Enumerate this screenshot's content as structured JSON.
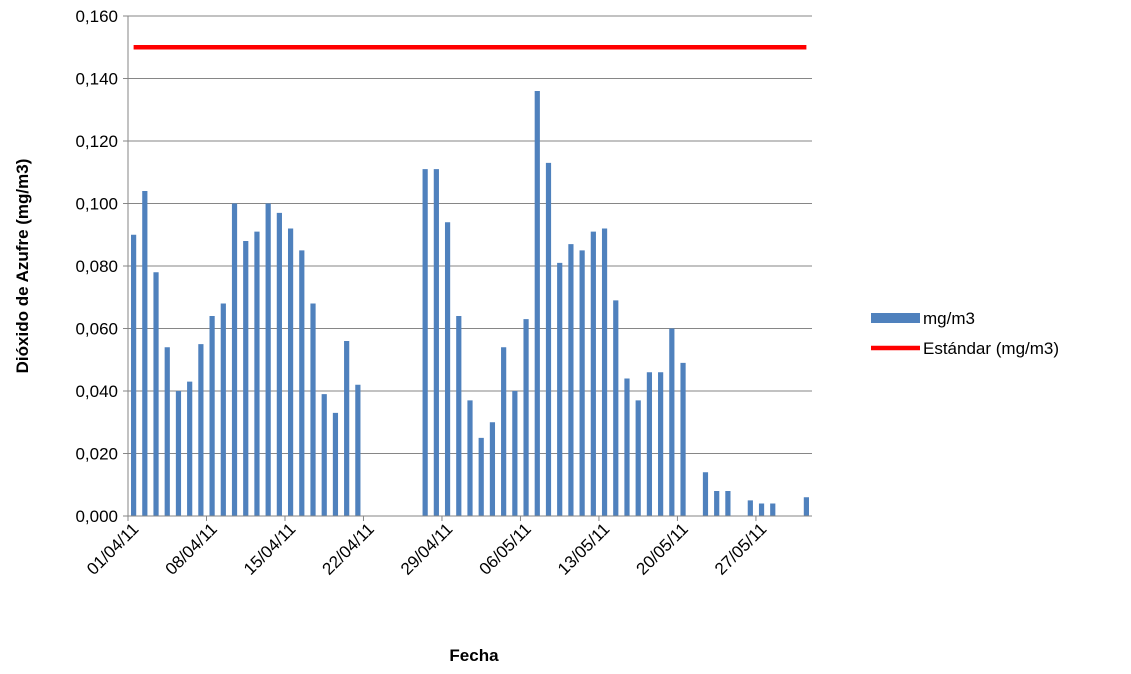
{
  "chart_data": {
    "type": "bar",
    "xlabel": "Fecha",
    "ylabel": "Dióxido de Azufre (mg/m3)",
    "categories": [
      "01/04/11",
      null,
      null,
      null,
      null,
      null,
      null,
      "08/04/11",
      null,
      null,
      null,
      null,
      null,
      null,
      "15/04/11",
      null,
      null,
      null,
      null,
      null,
      null,
      "22/04/11",
      null,
      null,
      null,
      null,
      null,
      null,
      "29/04/11",
      null,
      null,
      null,
      null,
      null,
      null,
      "06/05/11",
      null,
      null,
      null,
      null,
      null,
      null,
      "13/05/11",
      null,
      null,
      null,
      null,
      null,
      null,
      "20/05/11",
      null,
      null,
      null,
      null,
      null,
      null,
      "27/05/11",
      null,
      null,
      null,
      null
    ],
    "series": [
      {
        "name": "mg/m3",
        "type": "bar",
        "color": "#4f81bd",
        "values": [
          0.09,
          0.104,
          0.078,
          0.054,
          0.04,
          0.043,
          0.055,
          0.064,
          0.068,
          0.1,
          0.088,
          0.091,
          0.1,
          0.097,
          0.092,
          0.085,
          0.068,
          0.039,
          0.033,
          0.056,
          0.042,
          null,
          null,
          null,
          null,
          null,
          0.111,
          0.111,
          0.094,
          0.064,
          0.037,
          0.025,
          0.03,
          0.054,
          0.04,
          0.063,
          0.136,
          0.113,
          0.081,
          0.087,
          0.085,
          0.091,
          0.092,
          0.069,
          0.044,
          0.037,
          0.046,
          0.046,
          0.06,
          0.049,
          null,
          0.014,
          0.008,
          0.008,
          null,
          0.005,
          0.004,
          0.004,
          null,
          null,
          0.006
        ]
      },
      {
        "name": "Estándar (mg/m3)",
        "type": "line",
        "color": "#ff0000",
        "values": [
          0.15,
          0.15,
          0.15,
          0.15,
          0.15,
          0.15,
          0.15,
          0.15,
          0.15,
          0.15,
          0.15,
          0.15,
          0.15,
          0.15,
          0.15,
          0.15,
          0.15,
          0.15,
          0.15,
          0.15,
          0.15,
          0.15,
          0.15,
          0.15,
          0.15,
          0.15,
          0.15,
          0.15,
          0.15,
          0.15,
          0.15,
          0.15,
          0.15,
          0.15,
          0.15,
          0.15,
          0.15,
          0.15,
          0.15,
          0.15,
          0.15,
          0.15,
          0.15,
          0.15,
          0.15,
          0.15,
          0.15,
          0.15,
          0.15,
          0.15,
          0.15,
          0.15,
          0.15,
          0.15,
          0.15,
          0.15,
          0.15,
          0.15,
          0.15,
          0.15,
          0.15
        ]
      }
    ],
    "ylim": [
      0,
      0.16
    ],
    "yticks": [
      {
        "value": 0,
        "label": "0,000"
      },
      {
        "value": 0.02,
        "label": "0,020"
      },
      {
        "value": 0.04,
        "label": "0,040"
      },
      {
        "value": 0.06,
        "label": "0,060"
      },
      {
        "value": 0.08,
        "label": "0,080"
      },
      {
        "value": 0.1,
        "label": "0,100"
      },
      {
        "value": 0.12,
        "label": "0,120"
      },
      {
        "value": 0.14,
        "label": "0,140"
      },
      {
        "value": 0.16,
        "label": "0,160"
      }
    ],
    "grid": true,
    "legend": "right"
  }
}
